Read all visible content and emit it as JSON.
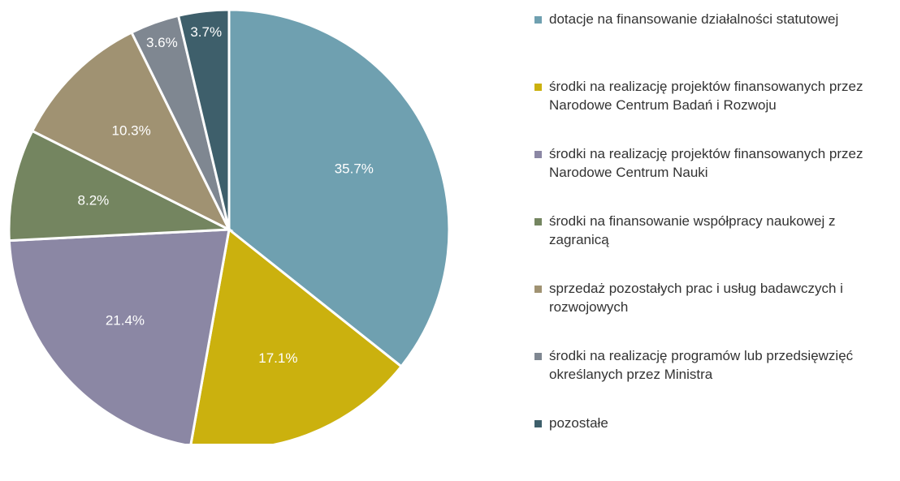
{
  "chart_data": {
    "type": "pie",
    "categories": [
      "dotacje na finansowanie działalności statutowej",
      "środki na realizację projektów finansowanych przez Narodowe Centrum Badań i Rozwoju",
      "środki na realizację projektów finansowanych przez Narodowe Centrum Nauki",
      "środki na finansowanie współpracy naukowej z zagranicą",
      "sprzedaż pozostałych prac i usług badawczych i rozwojowych",
      "środki na realizację programów lub przedsięwzięć określanych przez Ministra",
      "pozostałe"
    ],
    "values": [
      35.7,
      17.1,
      21.4,
      8.2,
      10.3,
      3.6,
      3.7
    ],
    "value_labels": [
      "35.7%",
      "17.1%",
      "21.4%",
      "8.2%",
      "10.3%",
      "3.6%",
      "3.7%"
    ],
    "colors": [
      "#6fa0b0",
      "#cbb10e",
      "#8b87a4",
      "#748560",
      "#a09272",
      "#7f8791",
      "#3e5f6b"
    ],
    "legend": "right"
  }
}
